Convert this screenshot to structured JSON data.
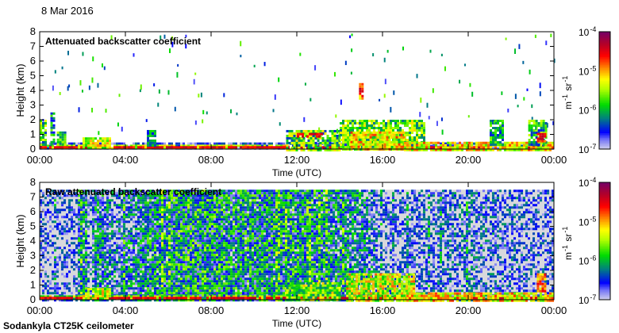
{
  "date": "8 Mar 2016",
  "footer": "Sodankyla CT25K ceilometer",
  "chart_data": [
    {
      "type": "heatmap",
      "title": "Attenuated backscatter coefficient",
      "xlabel": "Time (UTC)",
      "ylabel": "Height (km)",
      "xlim": [
        0,
        24
      ],
      "ylim": [
        0,
        8
      ],
      "xticks": [
        "00:00",
        "04:00",
        "08:00",
        "12:00",
        "16:00",
        "20:00",
        "00:00"
      ],
      "yticks": [
        "0",
        "1",
        "2",
        "3",
        "4",
        "5",
        "6",
        "7",
        "8"
      ],
      "colorbar": {
        "label_base": "m",
        "label_exp1": "-1",
        "label_mid": " sr",
        "label_exp2": "-1",
        "log_range": [
          -7,
          -4
        ],
        "ticks": [
          {
            "base": "10",
            "exp": "-4"
          },
          {
            "base": "10",
            "exp": "-5"
          },
          {
            "base": "10",
            "exp": "-6"
          },
          {
            "base": "10",
            "exp": "-7"
          }
        ]
      },
      "background_noise": null,
      "scatter_density": 0.004,
      "features": [
        {
          "t": [
            0,
            24
          ],
          "h": [
            0,
            0.45
          ],
          "log_value": -6.6,
          "spread": 0.4
        },
        {
          "t": [
            0,
            11.5
          ],
          "h": [
            0,
            0.3
          ],
          "log_value": -5.3,
          "spread": 0.4
        },
        {
          "t": [
            0,
            24
          ],
          "h": [
            0.1,
            0.2
          ],
          "log_value": -4.5,
          "spread": 0.2
        },
        {
          "t": [
            2.0,
            3.3
          ],
          "h": [
            0,
            0.8
          ],
          "log_value": -5.4,
          "spread": 0.5
        },
        {
          "t": [
            0.0,
            0.3
          ],
          "h": [
            0.3,
            2.0
          ],
          "log_value": -5.8,
          "spread": 0.6
        },
        {
          "t": [
            0.5,
            0.7
          ],
          "h": [
            0.3,
            2.5
          ],
          "log_value": -6.1,
          "spread": 0.5
        },
        {
          "t": [
            0.8,
            1.2
          ],
          "h": [
            0.3,
            1.2
          ],
          "log_value": -5.9,
          "spread": 0.5
        },
        {
          "t": [
            5.0,
            5.4
          ],
          "h": [
            0.3,
            1.3
          ],
          "log_value": -6.2,
          "spread": 0.4
        },
        {
          "t": [
            11.5,
            14.0
          ],
          "h": [
            0,
            1.3
          ],
          "log_value": -5.8,
          "spread": 0.7
        },
        {
          "t": [
            12.0,
            13.2
          ],
          "h": [
            0.9,
            1.1
          ],
          "log_value": -4.5,
          "spread": 0.2
        },
        {
          "t": [
            14.0,
            18.0
          ],
          "h": [
            0,
            2.0
          ],
          "log_value": -5.7,
          "spread": 0.6
        },
        {
          "t": [
            14.5,
            17.0
          ],
          "h": [
            0,
            1.2
          ],
          "log_value": -5.2,
          "spread": 0.5
        },
        {
          "t": [
            14.9,
            15.1
          ],
          "h": [
            3.5,
            4.5
          ],
          "log_value": -4.8,
          "spread": 0.5
        },
        {
          "t": [
            17.0,
            24.0
          ],
          "h": [
            0,
            0.5
          ],
          "log_value": -5.2,
          "spread": 0.5
        },
        {
          "t": [
            21.0,
            21.6
          ],
          "h": [
            0.3,
            2.0
          ],
          "log_value": -6.0,
          "spread": 0.5
        },
        {
          "t": [
            22.8,
            23.6
          ],
          "h": [
            0.3,
            2.0
          ],
          "log_value": -5.9,
          "spread": 0.6
        },
        {
          "t": [
            23.2,
            23.6
          ],
          "h": [
            0.6,
            1.1
          ],
          "log_value": -4.6,
          "spread": 0.3
        }
      ]
    },
    {
      "type": "heatmap",
      "title": "Raw attenuated backscatter coefficient",
      "xlabel": "Time (UTC)",
      "ylabel": "Height (km)",
      "xlim": [
        0,
        24
      ],
      "ylim": [
        0,
        8
      ],
      "xticks": [
        "00:00",
        "04:00",
        "08:00",
        "12:00",
        "16:00",
        "20:00",
        "00:00"
      ],
      "yticks": [
        "0",
        "1",
        "2",
        "3",
        "4",
        "5",
        "6",
        "7",
        "8"
      ],
      "colorbar": {
        "label_base": "m",
        "label_exp1": "-1",
        "label_mid": " sr",
        "label_exp2": "-1",
        "log_range": [
          -7,
          -4
        ],
        "ticks": [
          {
            "base": "10",
            "exp": "-4"
          },
          {
            "base": "10",
            "exp": "-5"
          },
          {
            "base": "10",
            "exp": "-6"
          },
          {
            "base": "10",
            "exp": "-7"
          }
        ]
      },
      "background_noise": {
        "h_max": 7.5,
        "profile": [
          [
            0,
            -6.9
          ],
          [
            1.7,
            -6.9
          ],
          [
            1.8,
            -6.2
          ],
          [
            2.3,
            -6.9
          ],
          [
            2.6,
            -6.3
          ],
          [
            3.0,
            -6.3
          ],
          [
            3.3,
            -6.6
          ],
          [
            4.0,
            -6.5
          ],
          [
            5.0,
            -6.3
          ],
          [
            7.0,
            -6.1
          ],
          [
            9.0,
            -6.2
          ],
          [
            12.0,
            -6.2
          ],
          [
            14.0,
            -6.3
          ],
          [
            15.3,
            -6.5
          ],
          [
            16.0,
            -6.9
          ],
          [
            18.0,
            -6.8
          ],
          [
            20.0,
            -6.7
          ],
          [
            22.0,
            -6.8
          ],
          [
            24.0,
            -6.9
          ]
        ]
      },
      "scatter_density": 0,
      "features": [
        {
          "t": [
            0,
            24
          ],
          "h": [
            0,
            0.3
          ],
          "log_value": -5.6,
          "spread": 0.6
        },
        {
          "t": [
            0,
            24
          ],
          "h": [
            0.1,
            0.2
          ],
          "log_value": -4.5,
          "spread": 0.2
        },
        {
          "t": [
            2.0,
            3.3
          ],
          "h": [
            0,
            0.8
          ],
          "log_value": -5.4,
          "spread": 0.5
        },
        {
          "t": [
            11.5,
            14.0
          ],
          "h": [
            0,
            1.2
          ],
          "log_value": -5.6,
          "spread": 0.6
        },
        {
          "t": [
            14.3,
            17.5
          ],
          "h": [
            0,
            1.8
          ],
          "log_value": -5.4,
          "spread": 0.6
        },
        {
          "t": [
            17.0,
            24.0
          ],
          "h": [
            0,
            0.5
          ],
          "log_value": -5.2,
          "spread": 0.5
        },
        {
          "t": [
            23.2,
            23.6
          ],
          "h": [
            0.6,
            1.8
          ],
          "log_value": -4.9,
          "spread": 0.4
        }
      ]
    }
  ]
}
